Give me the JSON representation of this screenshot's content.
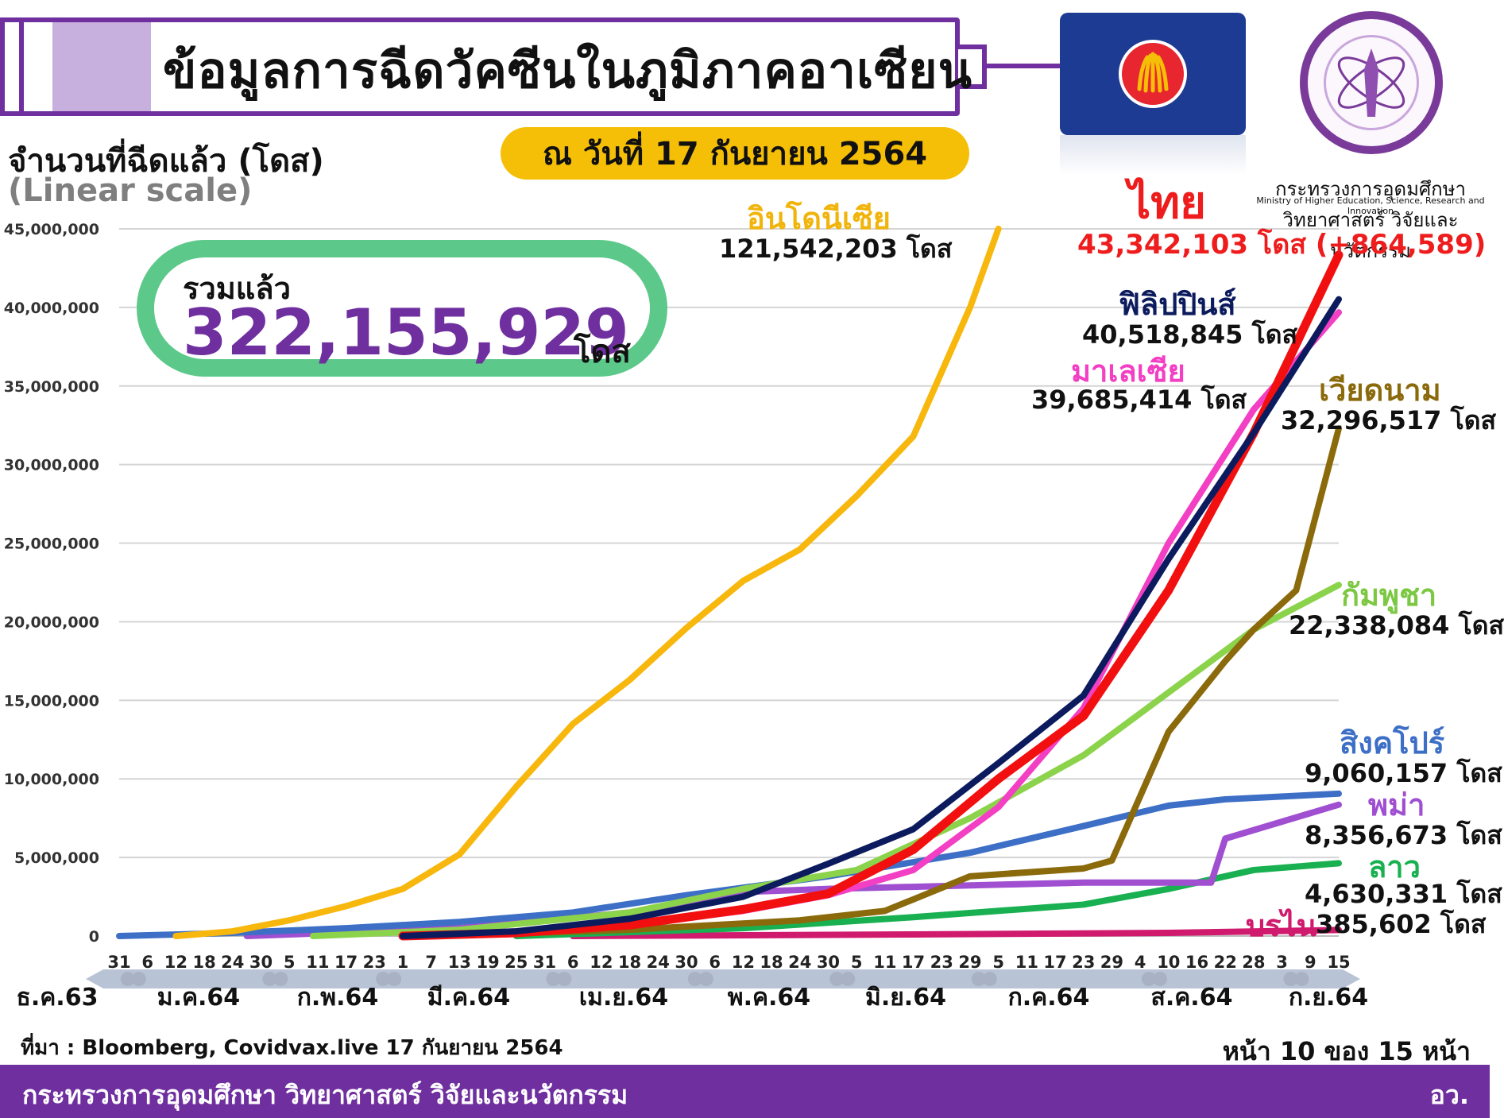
{
  "header": {
    "title": "ข้อมูลการฉีดวัคซีนในภูมิภาคอาเซียน",
    "date": "ณ วันที่ 17 กันยายน 2564",
    "logo_th": "กระทรวงการอุดมศึกษา\nวิทยาศาสตร์ วิจัยและนวัตกรรม",
    "logo_en": "Ministry of Higher Education, Science, Research and Innovation"
  },
  "colors": {
    "accent_purple": "#6f2f9f",
    "date_yellow": "#f6bf07",
    "total_green": "#5cc98a",
    "flag_blue": "#1e3b93"
  },
  "icons": [
    "syringe-icon",
    "asean-flag-icon",
    "ministry-logo-icon"
  ],
  "total": {
    "label": "รวมแล้ว",
    "value": "322,155,929",
    "unit": "โดส"
  },
  "chart_data": {
    "type": "line",
    "ylabel": "จำนวนที่ฉีดแล้ว (โดส)",
    "yscale_note": "(Linear scale)",
    "ylim": [
      0,
      45000000
    ],
    "yticks": [
      0,
      5000000,
      10000000,
      15000000,
      20000000,
      25000000,
      30000000,
      35000000,
      40000000,
      45000000
    ],
    "ytick_labels": [
      "0",
      "5,000,000",
      "10,000,000",
      "15,000,000",
      "20,000,000",
      "25,000,000",
      "30,000,000",
      "35,000,000",
      "40,000,000",
      "45,000,000"
    ],
    "xlim": [
      "2020-12-31",
      "2021-09-15"
    ],
    "xtick_labels": [
      "31",
      "6",
      "12",
      "18",
      "24",
      "30",
      "5",
      "11",
      "17",
      "23",
      "1",
      "7",
      "13",
      "19",
      "25",
      "31",
      "6",
      "12",
      "18",
      "24",
      "30",
      "6",
      "12",
      "18",
      "24",
      "30",
      "5",
      "11",
      "17",
      "23",
      "29",
      "5",
      "11",
      "17",
      "23",
      "29",
      "4",
      "10",
      "16",
      "22",
      "28",
      "3",
      "9",
      "15"
    ],
    "months": [
      "ธ.ค.63",
      "ม.ค.64",
      "ก.พ.64",
      "มี.ค.64",
      "เม.ย.64",
      "พ.ค.64",
      "มิ.ย.64",
      "ก.ค.64",
      "ส.ค.64",
      "ก.ย.64"
    ],
    "grid": "horizontal",
    "series": [
      {
        "name": "อินโดนีเซีย",
        "label": "121,542,203 โดส",
        "color": "#f7b70d",
        "x": [
          "2021-01-12",
          "2021-01-24",
          "2021-02-05",
          "2021-02-17",
          "2021-03-01",
          "2021-03-13",
          "2021-03-25",
          "2021-04-06",
          "2021-04-18",
          "2021-04-30",
          "2021-05-12",
          "2021-05-24",
          "2021-06-05",
          "2021-06-17",
          "2021-06-29",
          "2021-07-05"
        ],
        "y": [
          0,
          300000,
          1000000,
          1900000,
          3000000,
          5200000,
          9500000,
          13500000,
          16300000,
          19600000,
          22600000,
          24600000,
          28000000,
          31800000,
          40000000,
          45000000
        ]
      },
      {
        "name": "ไทย",
        "label": "43,342,103 โดส (+864,589)",
        "color": "#f20f0f",
        "x": [
          "2021-03-01",
          "2021-03-25",
          "2021-04-18",
          "2021-05-12",
          "2021-05-30",
          "2021-06-17",
          "2021-07-05",
          "2021-07-23",
          "2021-08-10",
          "2021-08-28",
          "2021-09-15"
        ],
        "y": [
          0,
          200000,
          700000,
          1700000,
          2700000,
          5500000,
          10000000,
          14000000,
          22000000,
          32000000,
          43342103
        ]
      },
      {
        "name": "ฟิลิปปินส์",
        "label": "40,518,845 โดส",
        "color": "#0c1b5e",
        "x": [
          "2021-03-01",
          "2021-03-25",
          "2021-04-18",
          "2021-05-12",
          "2021-05-30",
          "2021-06-17",
          "2021-07-05",
          "2021-07-23",
          "2021-08-10",
          "2021-08-28",
          "2021-09-15"
        ],
        "y": [
          0,
          300000,
          1100000,
          2500000,
          4600000,
          6800000,
          11000000,
          15300000,
          24000000,
          32000000,
          40518845
        ]
      },
      {
        "name": "มาเลเซีย",
        "label": "39,685,414 โดส",
        "color": "#f23fc4",
        "x": [
          "2021-03-01",
          "2021-03-25",
          "2021-04-18",
          "2021-05-12",
          "2021-05-30",
          "2021-06-17",
          "2021-07-05",
          "2021-07-23",
          "2021-08-10",
          "2021-08-28",
          "2021-09-15"
        ],
        "y": [
          0,
          300000,
          700000,
          1600000,
          2600000,
          4200000,
          8200000,
          14500000,
          25000000,
          33500000,
          39685414
        ]
      },
      {
        "name": "เวียดนาม",
        "label": "32,296,517 โดส",
        "color": "#8b6a0c",
        "x": [
          "2021-03-08",
          "2021-04-18",
          "2021-05-24",
          "2021-06-11",
          "2021-06-29",
          "2021-07-23",
          "2021-07-29",
          "2021-08-10",
          "2021-08-22",
          "2021-08-28",
          "2021-09-06",
          "2021-09-15"
        ],
        "y": [
          0,
          400000,
          1000000,
          1600000,
          3800000,
          4300000,
          4800000,
          13000000,
          17500000,
          19500000,
          22000000,
          32296517
        ]
      },
      {
        "name": "กัมพูชา",
        "label": "22,338,084 โดส",
        "color": "#8cd34c",
        "x": [
          "2021-02-10",
          "2021-03-13",
          "2021-04-18",
          "2021-05-12",
          "2021-06-05",
          "2021-06-29",
          "2021-07-23",
          "2021-08-10",
          "2021-08-28",
          "2021-09-15"
        ],
        "y": [
          0,
          400000,
          1500000,
          3000000,
          4200000,
          7500000,
          11500000,
          15500000,
          19500000,
          22338084
        ]
      },
      {
        "name": "สิงคโปร์",
        "label": "9,060,157 โดส",
        "color": "#3d6fc6",
        "x": [
          "2020-12-31",
          "2021-01-24",
          "2021-02-17",
          "2021-03-13",
          "2021-04-06",
          "2021-04-30",
          "2021-05-30",
          "2021-06-29",
          "2021-07-23",
          "2021-08-10",
          "2021-08-22",
          "2021-09-15"
        ],
        "y": [
          0,
          200000,
          500000,
          900000,
          1500000,
          2600000,
          3800000,
          5300000,
          7000000,
          8300000,
          8700000,
          9060157
        ]
      },
      {
        "name": "พม่า",
        "label": "8,356,673 โดส",
        "color": "#a04fd1",
        "x": [
          "2021-01-27",
          "2021-03-13",
          "2021-04-18",
          "2021-05-12",
          "2021-05-30",
          "2021-07-23",
          "2021-08-19",
          "2021-08-22",
          "2021-09-15"
        ],
        "y": [
          0,
          500000,
          1500000,
          2800000,
          3000000,
          3400000,
          3400000,
          6200000,
          8356673
        ]
      },
      {
        "name": "ลาว",
        "label": "4,630,331 โดส",
        "color": "#18b050",
        "x": [
          "2021-03-25",
          "2021-05-12",
          "2021-06-17",
          "2021-07-23",
          "2021-08-10",
          "2021-08-28",
          "2021-09-15"
        ],
        "y": [
          0,
          500000,
          1200000,
          2000000,
          3000000,
          4200000,
          4630331
        ]
      },
      {
        "name": "บรไน",
        "label": "385,602 โดส",
        "color": "#cf1a6e",
        "x": [
          "2021-04-06",
          "2021-06-17",
          "2021-08-10",
          "2021-09-15"
        ],
        "y": [
          0,
          100000,
          200000,
          385602
        ]
      }
    ]
  },
  "footer": {
    "source": "ที่มา : Bloomberg, Covidvax.live 17 กันยายน 2564",
    "page": "หน้า 10 ของ 15 หน้า",
    "org": "กระทรวงการอุดมศึกษา วิทยาศาสตร์ วิจัยและนวัตกรรม",
    "short": "อว."
  }
}
